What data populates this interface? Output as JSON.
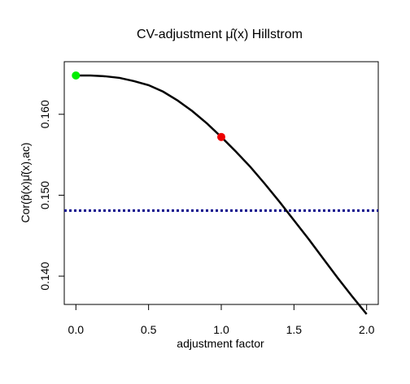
{
  "chart_data": {
    "type": "line",
    "title": "CV-adjustment μ̂(x) Hillstrom",
    "xlabel": "adjustment factor",
    "ylabel": "Cor(p̂(x)μ̂(x),ac)",
    "xlim": [
      -0.08,
      2.08
    ],
    "ylim": [
      0.1365,
      0.1665
    ],
    "x_ticks": [
      0.0,
      0.5,
      1.0,
      1.5,
      2.0
    ],
    "x_tick_labels": [
      "0.0",
      "0.5",
      "1.0",
      "1.5",
      "2.0"
    ],
    "y_ticks": [
      0.14,
      0.15,
      0.16
    ],
    "y_tick_labels": [
      "0.140",
      "0.150",
      "0.160"
    ],
    "grid": false,
    "legend": "none",
    "series": [
      {
        "x": [
          0.0,
          0.1,
          0.2,
          0.3,
          0.4,
          0.5,
          0.6,
          0.7,
          0.8,
          0.9,
          1.0,
          1.1,
          1.2,
          1.3,
          1.4,
          1.5,
          1.6,
          1.7,
          1.8,
          1.9,
          2.0
        ],
        "y": [
          0.1648,
          0.1648,
          0.1647,
          0.1645,
          0.1641,
          0.1636,
          0.1628,
          0.1617,
          0.1604,
          0.1589,
          0.1572,
          0.1554,
          0.1535,
          0.1514,
          0.1492,
          0.1469,
          0.1446,
          0.1422,
          0.1398,
          0.1375,
          0.1353
        ],
        "color": "#000000"
      }
    ],
    "points": [
      {
        "x": 0.0,
        "y": 0.1648,
        "color": "#00ee00"
      },
      {
        "x": 1.0,
        "y": 0.1572,
        "color": "#ee0000"
      }
    ],
    "hline": {
      "y": 0.1481,
      "color": "#00008b",
      "style": "dotted"
    }
  }
}
